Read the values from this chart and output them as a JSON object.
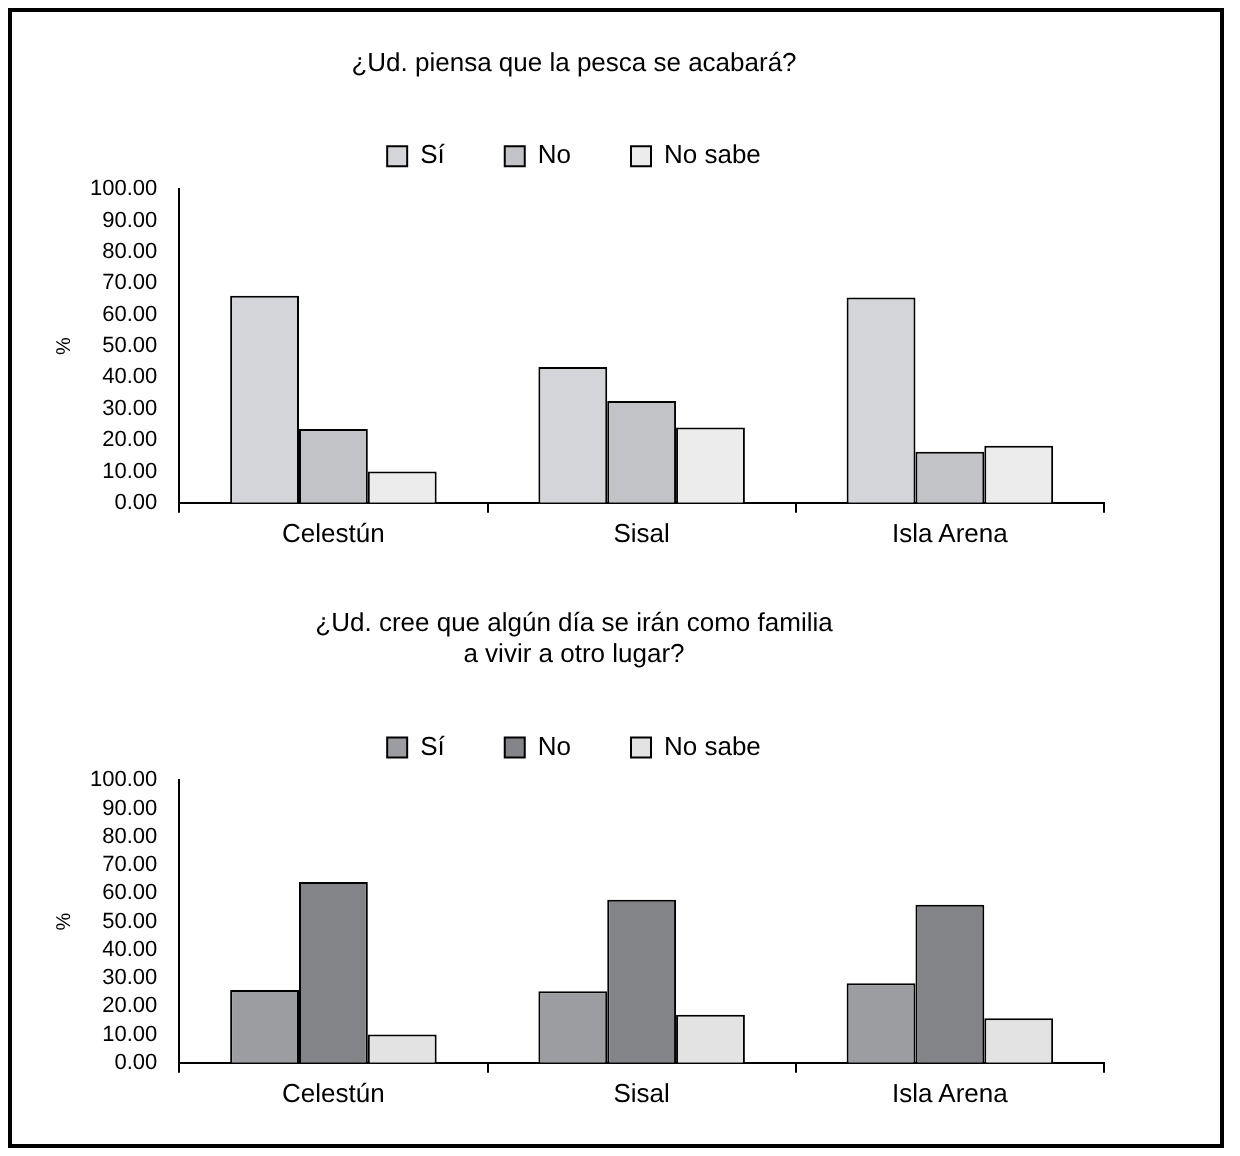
{
  "chart_data": [
    {
      "type": "bar",
      "title": "¿Ud. piensa que la pesca se acabará?",
      "ylabel": "%",
      "categories": [
        "Celestún",
        "Sisal",
        "Isla Arena"
      ],
      "series": [
        {
          "name": "Sí",
          "color": "#d4d5d8",
          "values": [
            66,
            43.3,
            65.5
          ]
        },
        {
          "name": "No",
          "color": "#c2c3c6",
          "values": [
            23.5,
            32.5,
            16.3
          ]
        },
        {
          "name": "No sabe",
          "color": "#ececec",
          "values": [
            10,
            24,
            18.2
          ]
        }
      ],
      "ylim": [
        0,
        100
      ],
      "yticks": [
        {
          "value": 0,
          "label": "0.00"
        },
        {
          "value": 10,
          "label": "10.00"
        },
        {
          "value": 20,
          "label": "20.00"
        },
        {
          "value": 30,
          "label": "30.00"
        },
        {
          "value": 40,
          "label": "40.00"
        },
        {
          "value": 50,
          "label": "50.00"
        },
        {
          "value": 60,
          "label": "60.00"
        },
        {
          "value": 70,
          "label": "70.00"
        },
        {
          "value": 80,
          "label": "80.00"
        },
        {
          "value": 90,
          "label": "90.00"
        },
        {
          "value": 100,
          "label": "100.00"
        }
      ],
      "grid": false,
      "legend": "top"
    },
    {
      "type": "bar",
      "title": "¿Ud. cree que algún día se irán como familia\na vivir a otro lugar?",
      "ylabel": "%",
      "categories": [
        "Celestún",
        "Sisal",
        "Isla Arena"
      ],
      "series": [
        {
          "name": "Sí",
          "color": "#9c9da1",
          "values": [
            25.8,
            25.3,
            28.2
          ]
        },
        {
          "name": "No",
          "color": "#838488",
          "values": [
            64,
            57.7,
            56
          ]
        },
        {
          "name": "No sabe",
          "color": "#e3e3e4",
          "values": [
            10,
            17,
            15.8
          ]
        }
      ],
      "ylim": [
        0,
        100
      ],
      "yticks": [
        {
          "value": 0,
          "label": "0.00"
        },
        {
          "value": 10,
          "label": "10.00"
        },
        {
          "value": 20,
          "label": "20.00"
        },
        {
          "value": 30,
          "label": "30.00"
        },
        {
          "value": 40,
          "label": "40.00"
        },
        {
          "value": 50,
          "label": "50.00"
        },
        {
          "value": 60,
          "label": "60.00"
        },
        {
          "value": 70,
          "label": "70.00"
        },
        {
          "value": 80,
          "label": "80.00"
        },
        {
          "value": 90,
          "label": "90.00"
        },
        {
          "value": 100,
          "label": "100.00"
        }
      ],
      "grid": false,
      "legend": "top"
    }
  ]
}
